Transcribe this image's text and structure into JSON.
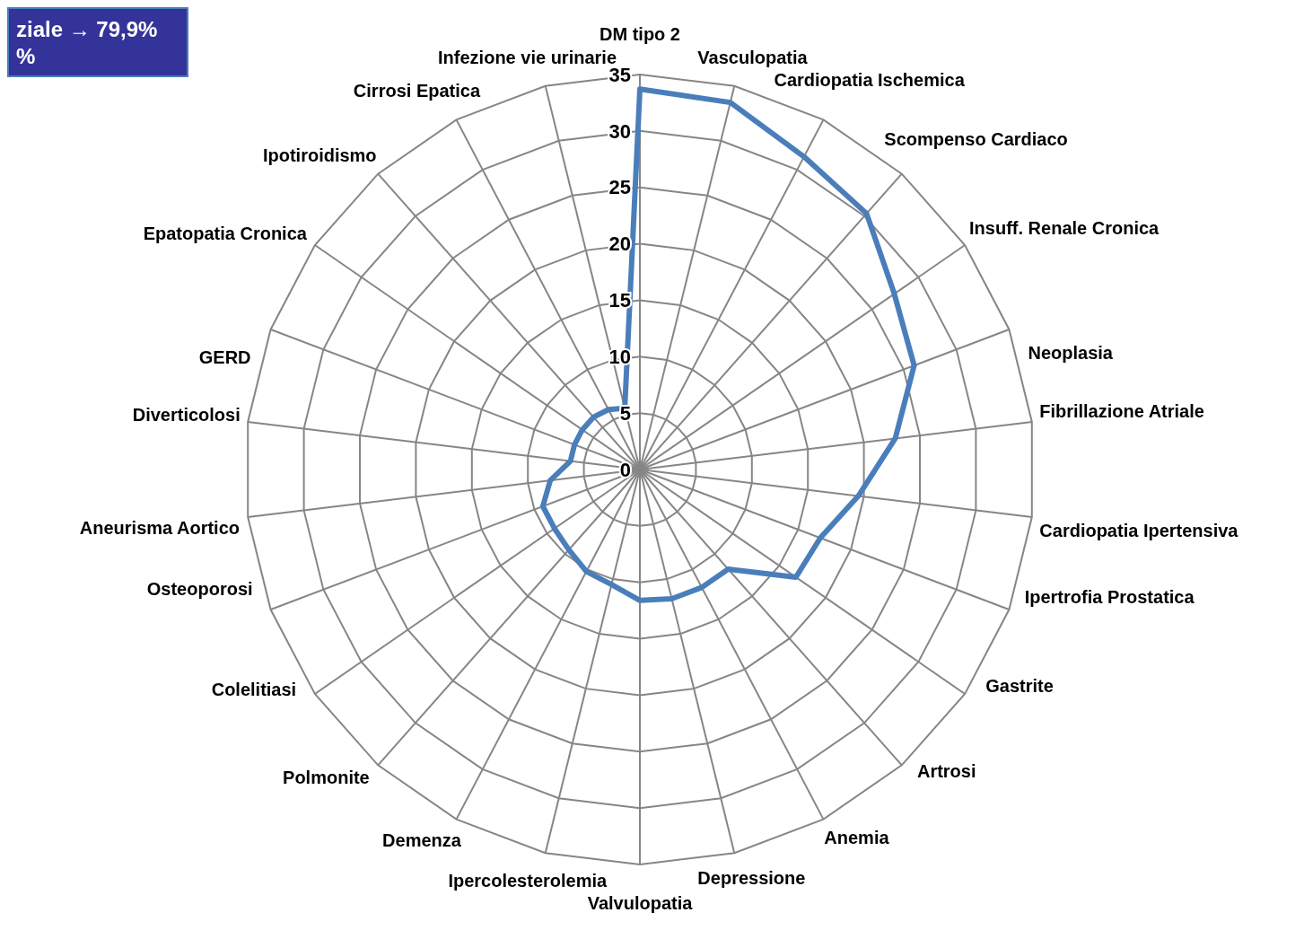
{
  "chart_data": {
    "type": "radar",
    "categories": [
      "DM tipo 2",
      "Vasculopatia",
      "Cardiopatia Ischemica",
      "Scompenso Cardiaco",
      "Insuff. Renale Cronica",
      "Neoplasia",
      "Fibrillazione Atriale",
      "Cardiopatia Ipertensiva",
      "Ipertrofia Prostatica",
      "Gastrite",
      "Artrosi",
      "Anemia",
      "Depressione",
      "Valvulopatia",
      "Ipercolesterolemia",
      "Demenza",
      "Polmonite",
      "Colelitiasi",
      "Osteoporosi",
      "Aneurisma Aortico",
      "Diverticolosi",
      "GERD",
      "Epatopatia Cronica",
      "Ipotiroidismo",
      "Cirrosi Epatica",
      "Infezione vie urinarie"
    ],
    "series": [
      {
        "color": "#4a7ebb",
        "values": [
          33.7,
          33.5,
          31.3,
          30.3,
          27.4,
          26.0,
          22.8,
          19.5,
          17.1,
          16.8,
          11.8,
          11.8,
          11.8,
          11.6,
          10.5,
          10.2,
          9.5,
          9.2,
          9.2,
          8.0,
          6.2,
          6.2,
          6.2,
          6.2,
          6.0,
          5.6
        ]
      }
    ],
    "ylim": [
      0,
      35
    ],
    "yticks": [
      0,
      5,
      10,
      15,
      20,
      25,
      30,
      35
    ],
    "grid": true,
    "legend": false,
    "marker": "none",
    "line_style": "solid",
    "annotations": [
      "ziale → 79,9%",
      "%"
    ]
  }
}
